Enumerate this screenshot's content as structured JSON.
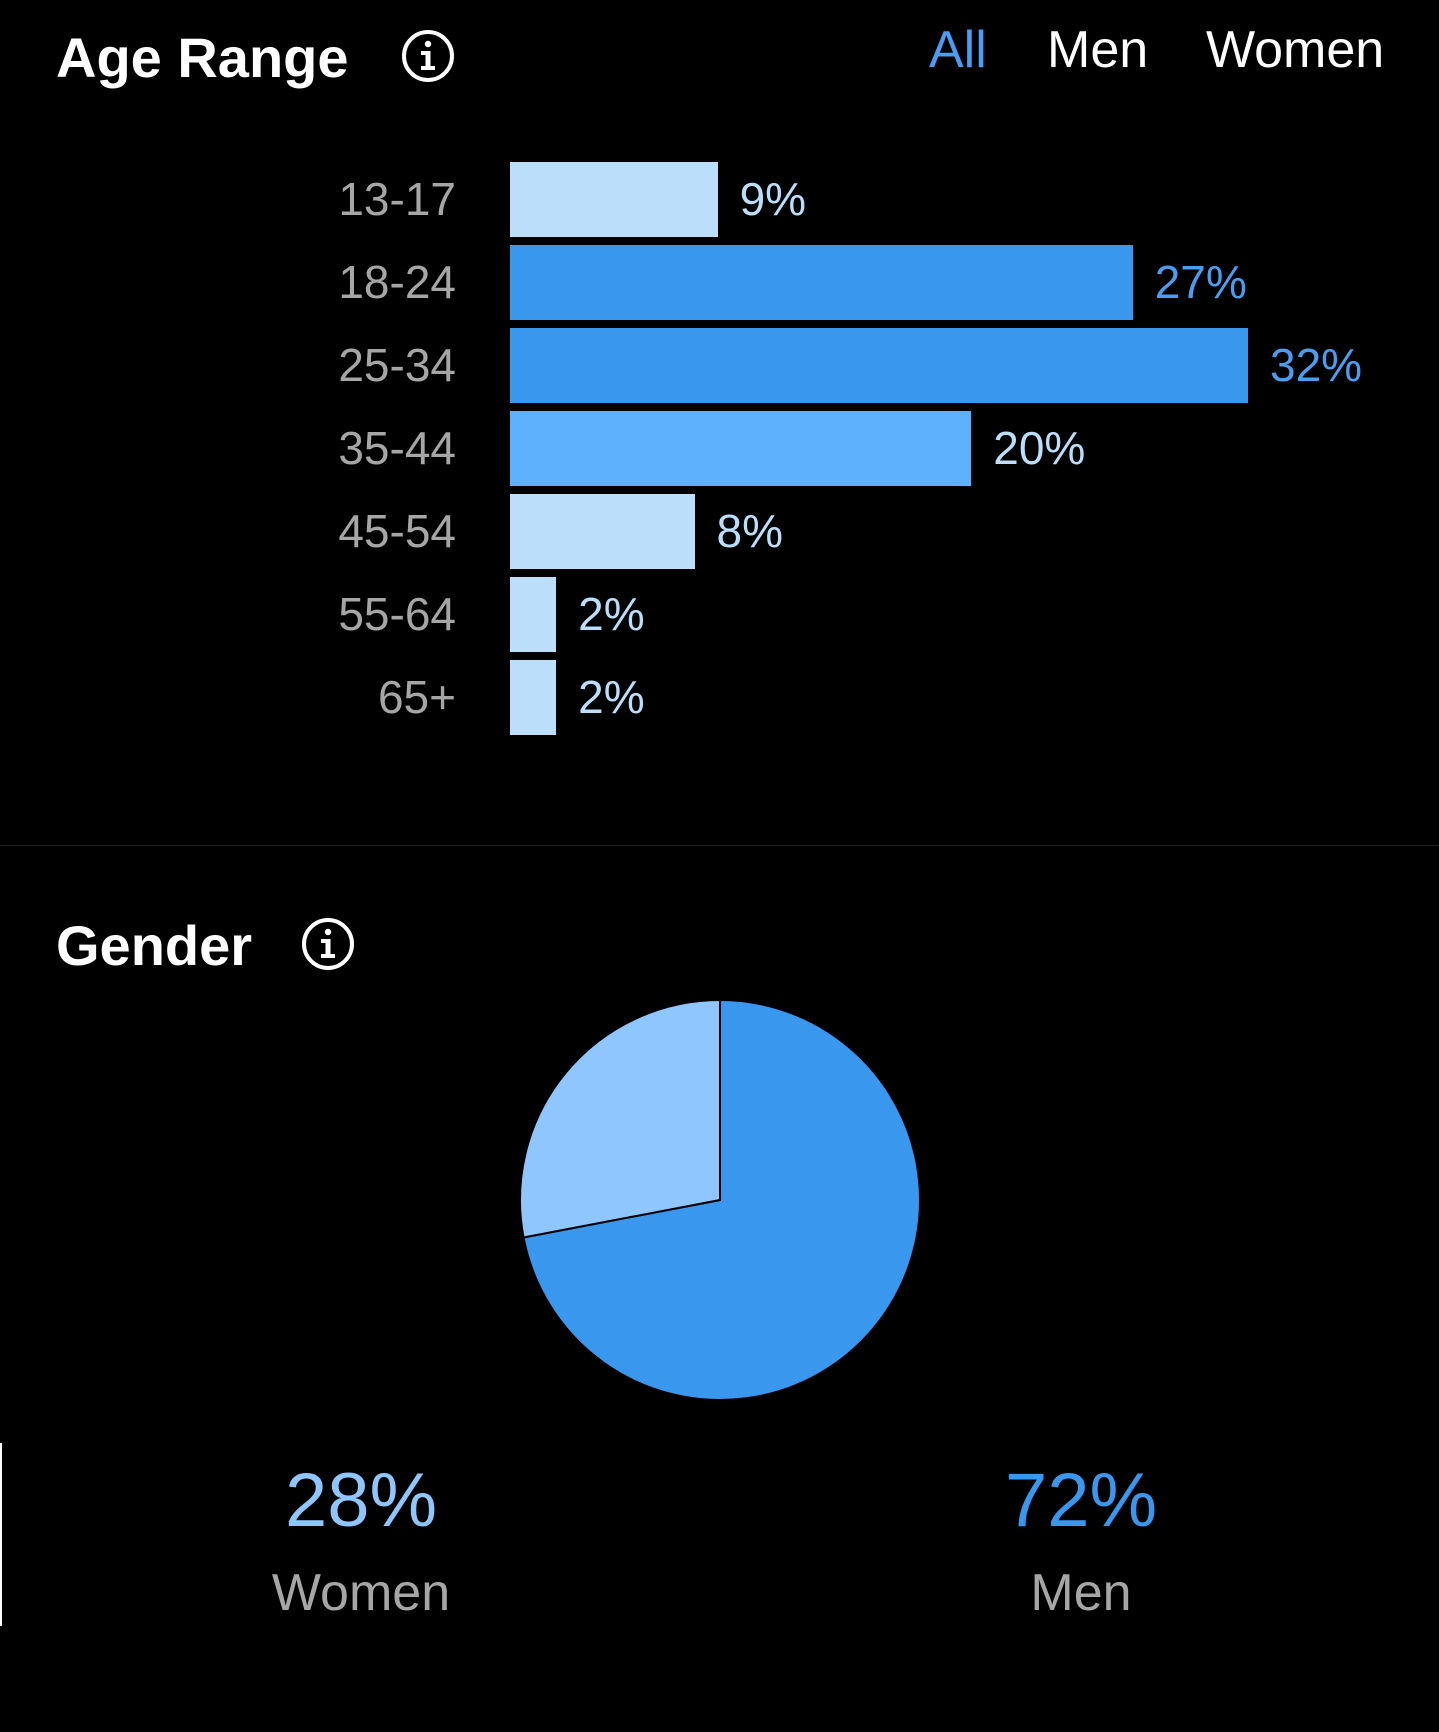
{
  "age_range": {
    "title": "Age Range",
    "tabs": [
      {
        "label": "All",
        "active": true
      },
      {
        "label": "Men",
        "active": false
      },
      {
        "label": "Women",
        "active": false
      }
    ]
  },
  "gender": {
    "title": "Gender",
    "women": {
      "percent_label": "28%",
      "label": "Women"
    },
    "men": {
      "percent_label": "72%",
      "label": "Men"
    }
  },
  "colors": {
    "background": "#000000",
    "accent": "#4a9df0",
    "bar_light": "#bbdefb",
    "bar_dark": "#3a97ee",
    "bar_mid": "#5eb1fd",
    "pie_women": "#8ec6fd",
    "pie_men": "#3a97ee",
    "label_gray": "#a6a6a6"
  },
  "icons": {
    "info": "info-circle-icon"
  },
  "chart_data": [
    {
      "type": "bar",
      "orientation": "horizontal",
      "title": "Age Range",
      "categories": [
        "13-17",
        "18-24",
        "25-34",
        "35-44",
        "45-54",
        "55-64",
        "65+"
      ],
      "values": [
        9,
        27,
        32,
        20,
        8,
        2,
        2
      ],
      "value_labels": [
        "9%",
        "27%",
        "32%",
        "20%",
        "8%",
        "2%",
        "2%"
      ],
      "unit": "%"
    },
    {
      "type": "pie",
      "title": "Gender",
      "labels": [
        "Women",
        "Men"
      ],
      "values": [
        28,
        72
      ]
    }
  ]
}
